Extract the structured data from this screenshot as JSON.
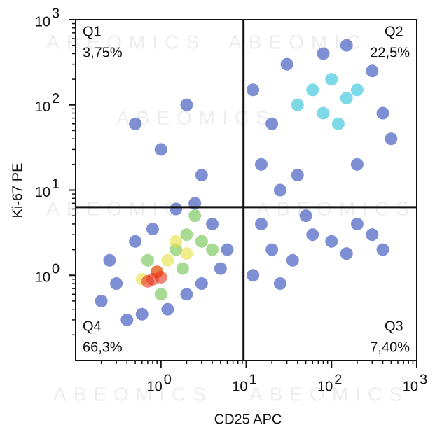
{
  "chart_data": {
    "type": "scatter",
    "x_label": "CD25 APC",
    "y_label": "Ki-67 PE",
    "log_x": true,
    "log_y": true,
    "xlim": [
      0.1,
      1000
    ],
    "ylim": [
      0.1,
      1000
    ],
    "xticks": [
      {
        "value": 1,
        "label": "10",
        "exponent": "0"
      },
      {
        "value": 10,
        "label": "10",
        "exponent": "1"
      },
      {
        "value": 100,
        "label": "10",
        "exponent": "2"
      },
      {
        "value": 1000,
        "label": "10",
        "exponent": "3"
      }
    ],
    "yticks": [
      {
        "value": 1,
        "label": "10",
        "exponent": "0"
      },
      {
        "value": 10,
        "label": "10",
        "exponent": "1"
      },
      {
        "value": 100,
        "label": "10",
        "exponent": "2"
      },
      {
        "value": 1000,
        "label": "10",
        "exponent": "3"
      }
    ],
    "minor_ticks": true,
    "x_gate": 9.3,
    "y_gate": 6.3,
    "quadrants": [
      {
        "label": "Q1",
        "value": 3.75,
        "value_label": "3,75%",
        "corner": "top-left"
      },
      {
        "label": "Q2",
        "value": 22.5,
        "value_label": "22,5%",
        "corner": "top-right"
      },
      {
        "label": "Q3",
        "value": 7.4,
        "value_label": "7,40%",
        "corner": "bottom-right"
      },
      {
        "label": "Q4",
        "value": 66.3,
        "value_label": "66,3%",
        "corner": "bottom-left"
      }
    ],
    "watermark": "ABEOMICS",
    "series": [
      {
        "color": "#2a44b8",
        "x": [
          0.2,
          0.3,
          0.25,
          0.4,
          0.6,
          1.2,
          2,
          3,
          5,
          6,
          4,
          1.5,
          0.5,
          0.8,
          2.5,
          12,
          20,
          35,
          60,
          100,
          200,
          300,
          15,
          50,
          150,
          400,
          25,
          15,
          20,
          30,
          12,
          400,
          300,
          500,
          40,
          200,
          80,
          25,
          150,
          1,
          2,
          3,
          0.5
        ],
        "y": [
          0.5,
          0.8,
          1.5,
          0.3,
          0.35,
          0.4,
          0.6,
          0.8,
          1.2,
          2,
          4,
          6,
          2.5,
          3.5,
          7,
          1,
          2,
          1.5,
          3,
          2.5,
          4,
          3,
          4,
          5,
          1.8,
          2,
          0.8,
          20,
          60,
          300,
          150,
          80,
          250,
          40,
          15,
          20,
          400,
          10,
          500,
          30,
          100,
          15,
          60
        ]
      },
      {
        "color": "#27c0d8",
        "x": [
          60,
          100,
          150,
          80,
          200,
          120,
          40
        ],
        "y": [
          150,
          200,
          120,
          80,
          150,
          60,
          100
        ]
      },
      {
        "color": "#6cc24a",
        "x": [
          1.5,
          2,
          3,
          0.7,
          2.5,
          4,
          1,
          1.8
        ],
        "y": [
          2,
          3,
          2.5,
          1.5,
          5,
          2,
          0.6,
          1.2
        ]
      },
      {
        "color": "#e8e040",
        "x": [
          1.2,
          1.5,
          0.9,
          2,
          0.6
        ],
        "y": [
          1.5,
          2.5,
          1.1,
          1.8,
          0.9
        ]
      },
      {
        "color": "#e8331c",
        "x": [
          0.8,
          1,
          0.7,
          0.9
        ],
        "y": [
          0.9,
          0.95,
          0.85,
          1.1
        ]
      }
    ]
  }
}
